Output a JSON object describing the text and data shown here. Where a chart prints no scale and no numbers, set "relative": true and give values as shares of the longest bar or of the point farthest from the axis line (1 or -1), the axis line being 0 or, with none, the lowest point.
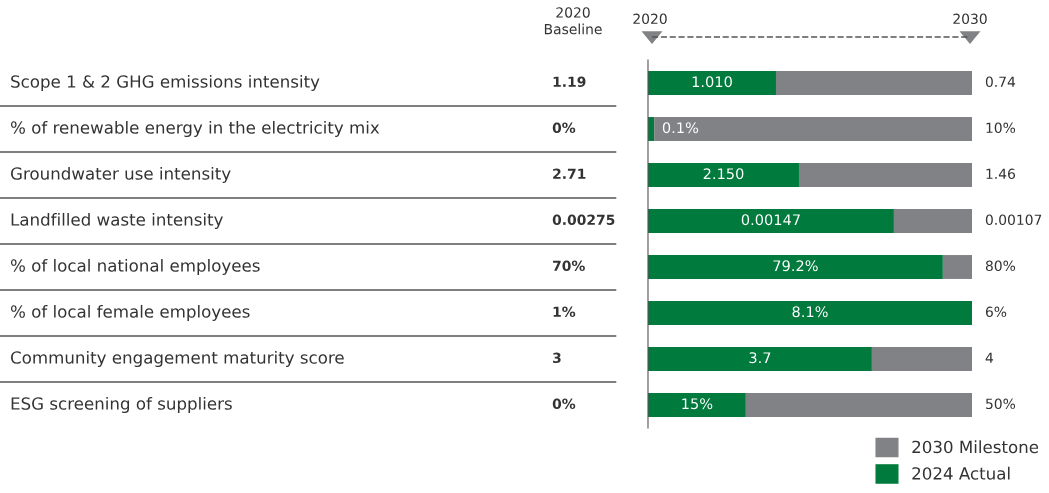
{
  "chart_data": {
    "type": "bar",
    "orientation": "horizontal",
    "stacked": true,
    "relative": true,
    "categories": [
      "Scope 1 & 2 GHG emissions intensity",
      "% of renewable energy in the electricity mix",
      "Groundwater use intensity",
      "Landfilled waste intensity",
      "% of local national employees",
      "% of local female employees",
      "Community engagement maturity score",
      "ESG screening of suppliers"
    ],
    "series": [
      {
        "name": "2024 Actual",
        "color": "#007a3d",
        "values": [
          0.395,
          0.019,
          0.466,
          0.759,
          0.91,
          1.0,
          0.691,
          0.302
        ]
      },
      {
        "name": "2030 Milestone",
        "color": "#808285",
        "values": [
          0.605,
          0.981,
          0.534,
          0.241,
          0.09,
          0.0,
          0.309,
          0.698
        ]
      }
    ],
    "annotations": [
      "2020\nBaseline",
      "2020",
      "2030",
      "1.19",
      "0%",
      "2.71",
      "0.00275",
      "70%",
      "1%",
      "3",
      "0%",
      "1.010",
      "0.1%",
      "2.150",
      "0.00147",
      "79.2%",
      "8.1%",
      "3.7",
      "15%",
      "0.74",
      "10%",
      "1.46",
      "0.00107",
      "80%",
      "6%",
      "4",
      "50%"
    ],
    "legend": "bottom right"
  }
}
